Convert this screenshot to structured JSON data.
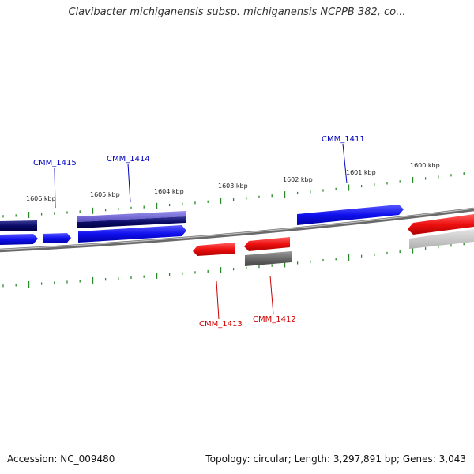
{
  "title": "Clavibacter michiganensis subsp. michiganensis NCPPB 382, co...",
  "footer": {
    "accession": "Accession: NC_009480",
    "summary": "Topology: circular; Length: 3,297,891 bp; Genes: 3,043"
  },
  "scale_labels": [
    "1606 kbp",
    "1605 kbp",
    "1604 kbp",
    "1603 kbp",
    "1602 kbp",
    "1601 kbp",
    "1600 kbp"
  ],
  "gene_labels": {
    "forward": [
      "CMM_1415",
      "CMM_1414",
      "CMM_1411"
    ],
    "reverse": [
      "CMM_1413",
      "CMM_1412"
    ]
  },
  "colors": {
    "forward_label": "#0000c0",
    "reverse_label": "#cc0000",
    "forward_gene": "#1010ee",
    "reverse_gene": "#ee1010",
    "tick": "#2a8a2a",
    "backbone": "#8a8a8a"
  }
}
